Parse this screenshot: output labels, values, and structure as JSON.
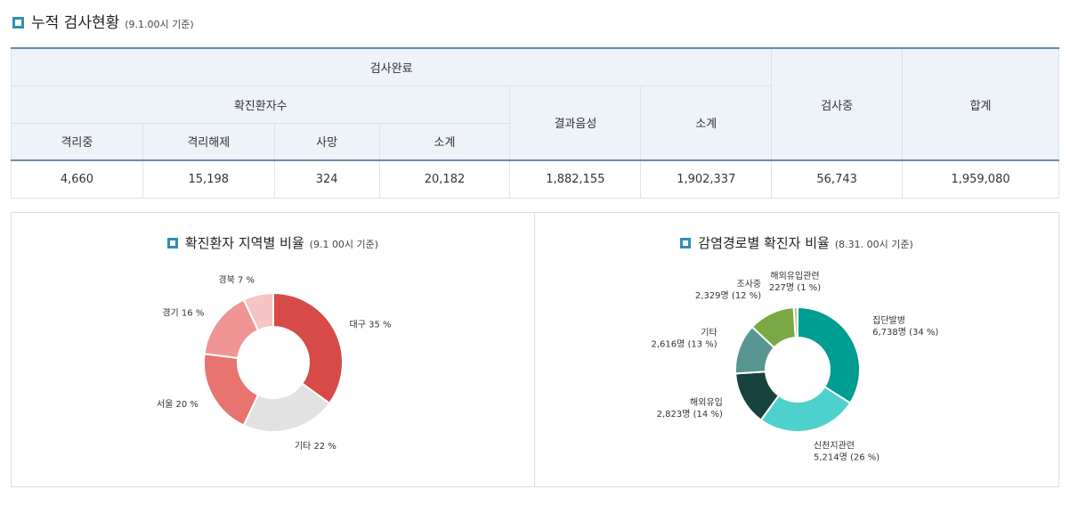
{
  "header": {
    "title": "누적 검사현황",
    "subtitle": "(9.1.00시 기준)"
  },
  "table": {
    "h_completed": "검사완료",
    "h_confirmed": "확진환자수",
    "h_negative": "결과음성",
    "h_subtotal2": "소계",
    "h_testing": "검사중",
    "h_total": "합계",
    "h_isolated": "격리중",
    "h_released": "격리해제",
    "h_deaths": "사망",
    "h_subtotal1": "소계",
    "row": [
      "4,660",
      "15,198",
      "324",
      "20,182",
      "1,882,155",
      "1,902,337",
      "56,743",
      "1,959,080"
    ]
  },
  "colors": {
    "accent": "#2f8fb5",
    "header_bg": "#edf3f9",
    "header_line": "#6a8bb0"
  },
  "chart_data": [
    {
      "type": "pie",
      "title": "확진환자 지역별 비율",
      "subtitle": "(9.1 00시 기준)",
      "slices": [
        {
          "label": "대구 35 %",
          "value": 35,
          "color": "#d64a48"
        },
        {
          "label": "기타 22 %",
          "value": 22,
          "color": "#e2e2e2"
        },
        {
          "label": "서울 20 %",
          "value": 20,
          "color": "#e87371"
        },
        {
          "label": "경기 16 %",
          "value": 16,
          "color": "#ef9593"
        },
        {
          "label": "경북 7 %",
          "value": 7,
          "color": "#f6c4c4"
        }
      ]
    },
    {
      "type": "pie",
      "title": "감염경로별 확진자 비율",
      "subtitle": "(8.31. 00시 기준)",
      "slices": [
        {
          "name": "집단발병",
          "detail": "6,738명 (34 %)",
          "value": 34,
          "color": "#009d92"
        },
        {
          "name": "신천지관련",
          "detail": "5,214명 (26 %)",
          "value": 26,
          "color": "#4ed1cc"
        },
        {
          "name": "해외유입",
          "detail": "2,823명 (14 %)",
          "value": 14,
          "color": "#17423e"
        },
        {
          "name": "기타",
          "detail": "2,616명 (13 %)",
          "value": 13,
          "color": "#579693"
        },
        {
          "name": "조사중",
          "detail": "2,329명 (12 %)",
          "value": 12,
          "color": "#7aa845"
        },
        {
          "name": "해외유입관련",
          "detail": "227명 (1 %)",
          "value": 1,
          "color": "#b9d07c"
        }
      ]
    }
  ]
}
